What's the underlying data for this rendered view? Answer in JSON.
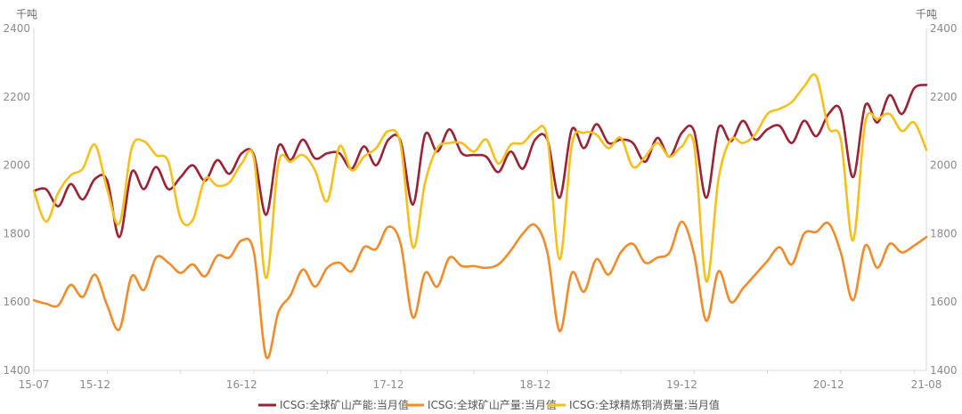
{
  "chart_data": {
    "type": "line",
    "y_unit_left": "千吨",
    "y_unit_right": "千吨",
    "ylim": [
      1400,
      2400
    ],
    "y_ticks": [
      "1400",
      "1600",
      "1800",
      "2000",
      "2200",
      "2400"
    ],
    "x_range": [
      "2015-07",
      "2021-08"
    ],
    "x_ticks": [
      {
        "label": "15-07",
        "date": "2015-07"
      },
      {
        "label": "15-12",
        "date": "2015-12"
      },
      {
        "label": "16-12",
        "date": "2016-12"
      },
      {
        "label": "17-12",
        "date": "2017-12"
      },
      {
        "label": "18-12",
        "date": "2018-12"
      },
      {
        "label": "19-12",
        "date": "2019-12"
      },
      {
        "label": "20-12",
        "date": "2020-12"
      },
      {
        "label": "21-08",
        "date": "2021-08"
      }
    ],
    "legend_position": "bottom",
    "grid": false,
    "series": [
      {
        "name": "ICSG:全球矿山产能:当月值",
        "color": "#9b2335",
        "values": [
          [
            "2015-07",
            1925
          ],
          [
            "2015-08",
            1930
          ],
          [
            "2015-09",
            1880
          ],
          [
            "2015-10",
            1945
          ],
          [
            "2015-11",
            1900
          ],
          [
            "2015-12",
            1960
          ],
          [
            "2016-01",
            1955
          ],
          [
            "2016-02",
            1790
          ],
          [
            "2016-03",
            1980
          ],
          [
            "2016-04",
            1930
          ],
          [
            "2016-05",
            1995
          ],
          [
            "2016-06",
            1930
          ],
          [
            "2016-07",
            1965
          ],
          [
            "2016-08",
            2000
          ],
          [
            "2016-09",
            1955
          ],
          [
            "2016-10",
            2015
          ],
          [
            "2016-11",
            1975
          ],
          [
            "2016-12",
            2035
          ],
          [
            "2017-01",
            2030
          ],
          [
            "2017-02",
            1855
          ],
          [
            "2017-03",
            2055
          ],
          [
            "2017-04",
            2015
          ],
          [
            "2017-05",
            2075
          ],
          [
            "2017-06",
            2020
          ],
          [
            "2017-07",
            2035
          ],
          [
            "2017-08",
            2035
          ],
          [
            "2017-09",
            1990
          ],
          [
            "2017-10",
            2055
          ],
          [
            "2017-11",
            2000
          ],
          [
            "2017-12",
            2075
          ],
          [
            "2018-01",
            2070
          ],
          [
            "2018-02",
            1885
          ],
          [
            "2018-03",
            2090
          ],
          [
            "2018-04",
            2040
          ],
          [
            "2018-05",
            2105
          ],
          [
            "2018-06",
            2035
          ],
          [
            "2018-07",
            2030
          ],
          [
            "2018-08",
            2025
          ],
          [
            "2018-09",
            1980
          ],
          [
            "2018-10",
            2040
          ],
          [
            "2018-11",
            1990
          ],
          [
            "2018-12",
            2075
          ],
          [
            "2019-01",
            2075
          ],
          [
            "2019-02",
            1905
          ],
          [
            "2019-03",
            2105
          ],
          [
            "2019-04",
            2050
          ],
          [
            "2019-05",
            2120
          ],
          [
            "2019-06",
            2065
          ],
          [
            "2019-07",
            2075
          ],
          [
            "2019-08",
            2065
          ],
          [
            "2019-09",
            2010
          ],
          [
            "2019-10",
            2080
          ],
          [
            "2019-11",
            2025
          ],
          [
            "2019-12",
            2095
          ],
          [
            "2020-01",
            2100
          ],
          [
            "2020-02",
            1905
          ],
          [
            "2020-03",
            2110
          ],
          [
            "2020-04",
            2070
          ],
          [
            "2020-05",
            2130
          ],
          [
            "2020-06",
            2075
          ],
          [
            "2020-07",
            2105
          ],
          [
            "2020-08",
            2115
          ],
          [
            "2020-09",
            2065
          ],
          [
            "2020-10",
            2130
          ],
          [
            "2020-11",
            2085
          ],
          [
            "2020-12",
            2150
          ],
          [
            "2021-01",
            2160
          ],
          [
            "2021-02",
            1965
          ],
          [
            "2021-03",
            2175
          ],
          [
            "2021-04",
            2125
          ],
          [
            "2021-05",
            2205
          ],
          [
            "2021-06",
            2150
          ],
          [
            "2021-07",
            2225
          ],
          [
            "2021-08",
            2235
          ]
        ]
      },
      {
        "name": "ICSG:全球矿山产量:当月值",
        "color": "#f08c2a",
        "values": [
          [
            "2015-07",
            1605
          ],
          [
            "2015-08",
            1595
          ],
          [
            "2015-09",
            1590
          ],
          [
            "2015-10",
            1650
          ],
          [
            "2015-11",
            1615
          ],
          [
            "2015-12",
            1680
          ],
          [
            "2016-01",
            1590
          ],
          [
            "2016-02",
            1520
          ],
          [
            "2016-03",
            1675
          ],
          [
            "2016-04",
            1635
          ],
          [
            "2016-05",
            1730
          ],
          [
            "2016-06",
            1715
          ],
          [
            "2016-07",
            1685
          ],
          [
            "2016-08",
            1710
          ],
          [
            "2016-09",
            1675
          ],
          [
            "2016-10",
            1735
          ],
          [
            "2016-11",
            1730
          ],
          [
            "2016-12",
            1780
          ],
          [
            "2017-01",
            1745
          ],
          [
            "2017-02",
            1440
          ],
          [
            "2017-03",
            1570
          ],
          [
            "2017-04",
            1620
          ],
          [
            "2017-05",
            1695
          ],
          [
            "2017-06",
            1645
          ],
          [
            "2017-07",
            1700
          ],
          [
            "2017-08",
            1715
          ],
          [
            "2017-09",
            1690
          ],
          [
            "2017-10",
            1760
          ],
          [
            "2017-11",
            1755
          ],
          [
            "2017-12",
            1820
          ],
          [
            "2018-01",
            1770
          ],
          [
            "2018-02",
            1555
          ],
          [
            "2018-03",
            1685
          ],
          [
            "2018-04",
            1645
          ],
          [
            "2018-05",
            1730
          ],
          [
            "2018-06",
            1705
          ],
          [
            "2018-07",
            1705
          ],
          [
            "2018-08",
            1700
          ],
          [
            "2018-09",
            1710
          ],
          [
            "2018-10",
            1750
          ],
          [
            "2018-11",
            1800
          ],
          [
            "2018-12",
            1825
          ],
          [
            "2019-01",
            1745
          ],
          [
            "2019-02",
            1515
          ],
          [
            "2019-03",
            1685
          ],
          [
            "2019-04",
            1630
          ],
          [
            "2019-05",
            1725
          ],
          [
            "2019-06",
            1680
          ],
          [
            "2019-07",
            1745
          ],
          [
            "2019-08",
            1770
          ],
          [
            "2019-09",
            1715
          ],
          [
            "2019-10",
            1730
          ],
          [
            "2019-11",
            1745
          ],
          [
            "2019-12",
            1835
          ],
          [
            "2020-01",
            1740
          ],
          [
            "2020-02",
            1545
          ],
          [
            "2020-03",
            1690
          ],
          [
            "2020-04",
            1600
          ],
          [
            "2020-05",
            1640
          ],
          [
            "2020-06",
            1680
          ],
          [
            "2020-07",
            1720
          ],
          [
            "2020-08",
            1760
          ],
          [
            "2020-09",
            1710
          ],
          [
            "2020-10",
            1800
          ],
          [
            "2020-11",
            1805
          ],
          [
            "2020-12",
            1830
          ],
          [
            "2021-01",
            1745
          ],
          [
            "2021-02",
            1605
          ],
          [
            "2021-03",
            1765
          ],
          [
            "2021-04",
            1700
          ],
          [
            "2021-05",
            1770
          ],
          [
            "2021-06",
            1745
          ],
          [
            "2021-07",
            1765
          ],
          [
            "2021-08",
            1790
          ]
        ]
      },
      {
        "name": "ICSG:全球精炼铜消费量:当月值",
        "color": "#f5c01b",
        "values": [
          [
            "2015-07",
            1925
          ],
          [
            "2015-08",
            1835
          ],
          [
            "2015-09",
            1920
          ],
          [
            "2015-10",
            1970
          ],
          [
            "2015-11",
            1990
          ],
          [
            "2015-12",
            2060
          ],
          [
            "2016-01",
            1930
          ],
          [
            "2016-02",
            1830
          ],
          [
            "2016-03",
            2050
          ],
          [
            "2016-04",
            2070
          ],
          [
            "2016-05",
            2030
          ],
          [
            "2016-06",
            2010
          ],
          [
            "2016-07",
            1845
          ],
          [
            "2016-08",
            1840
          ],
          [
            "2016-09",
            1960
          ],
          [
            "2016-10",
            1940
          ],
          [
            "2016-11",
            1950
          ],
          [
            "2016-12",
            2005
          ],
          [
            "2017-01",
            2020
          ],
          [
            "2017-02",
            1670
          ],
          [
            "2017-03",
            2005
          ],
          [
            "2017-04",
            2010
          ],
          [
            "2017-05",
            2030
          ],
          [
            "2017-06",
            1985
          ],
          [
            "2017-07",
            1895
          ],
          [
            "2017-08",
            2055
          ],
          [
            "2017-09",
            1985
          ],
          [
            "2017-10",
            2025
          ],
          [
            "2017-11",
            2050
          ],
          [
            "2017-12",
            2100
          ],
          [
            "2018-01",
            2060
          ],
          [
            "2018-02",
            1760
          ],
          [
            "2018-03",
            1950
          ],
          [
            "2018-04",
            2050
          ],
          [
            "2018-05",
            2065
          ],
          [
            "2018-06",
            2065
          ],
          [
            "2018-07",
            2040
          ],
          [
            "2018-08",
            2075
          ],
          [
            "2018-09",
            2005
          ],
          [
            "2018-10",
            2060
          ],
          [
            "2018-11",
            2065
          ],
          [
            "2018-12",
            2100
          ],
          [
            "2019-01",
            2080
          ],
          [
            "2019-02",
            1725
          ],
          [
            "2019-03",
            2060
          ],
          [
            "2019-04",
            2095
          ],
          [
            "2019-05",
            2090
          ],
          [
            "2019-06",
            2050
          ],
          [
            "2019-07",
            2080
          ],
          [
            "2019-08",
            1995
          ],
          [
            "2019-09",
            2025
          ],
          [
            "2019-10",
            2065
          ],
          [
            "2019-11",
            2025
          ],
          [
            "2019-12",
            2055
          ],
          [
            "2020-01",
            2060
          ],
          [
            "2020-02",
            1660
          ],
          [
            "2020-03",
            1960
          ],
          [
            "2020-04",
            2075
          ],
          [
            "2020-05",
            2065
          ],
          [
            "2020-06",
            2090
          ],
          [
            "2020-07",
            2150
          ],
          [
            "2020-08",
            2165
          ],
          [
            "2020-09",
            2185
          ],
          [
            "2020-10",
            2230
          ],
          [
            "2020-11",
            2260
          ],
          [
            "2020-12",
            2110
          ],
          [
            "2021-01",
            2075
          ],
          [
            "2021-02",
            1780
          ],
          [
            "2021-03",
            2125
          ],
          [
            "2021-04",
            2135
          ],
          [
            "2021-05",
            2150
          ],
          [
            "2021-06",
            2100
          ],
          [
            "2021-07",
            2125
          ],
          [
            "2021-08",
            2045
          ]
        ]
      }
    ]
  }
}
